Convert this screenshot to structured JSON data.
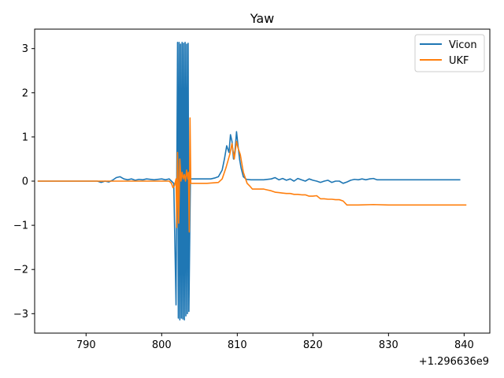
{
  "chart_data": {
    "type": "line",
    "title": "Yaw",
    "xlabel": "",
    "ylabel": "",
    "x_offset_label": "+1.296636e9",
    "xlim": [
      783.2,
      843.4
    ],
    "ylim": [
      -3.44,
      3.44
    ],
    "x_ticks": [
      790,
      800,
      810,
      820,
      830,
      840
    ],
    "y_ticks": [
      -3,
      -2,
      -1,
      0,
      1,
      2,
      3
    ],
    "grid": false,
    "legend_position": "top-right",
    "series": [
      {
        "name": "Vicon",
        "color": "#1f77b4",
        "x": [
          783.6,
          785,
          787,
          789,
          790.5,
          791.5,
          792,
          792.5,
          793,
          793.5,
          794,
          794.5,
          795,
          795.5,
          796,
          796.5,
          797,
          797.5,
          798,
          799,
          800,
          800.5,
          801,
          801.3,
          801.6,
          801.9,
          802.1,
          802.2,
          802.3,
          802.4,
          802.5,
          802.6,
          802.7,
          802.8,
          802.9,
          803.0,
          803.1,
          803.2,
          803.3,
          803.4,
          803.5,
          803.6,
          803.8,
          804.5,
          805.5,
          806.5,
          807,
          807.5,
          808,
          808.3,
          808.6,
          808.9,
          809.1,
          809.3,
          809.5,
          809.7,
          809.9,
          810.1,
          810.3,
          810.5,
          810.8,
          811.2,
          811.8,
          812.5,
          813.5,
          814.5,
          815,
          815.5,
          816,
          816.5,
          817,
          817.5,
          818,
          818.5,
          819,
          819.5,
          820,
          820.5,
          821,
          821.5,
          822,
          822.5,
          823,
          823.5,
          824,
          824.5,
          825,
          825.5,
          826,
          826.5,
          827,
          827.5,
          828,
          828.5,
          830,
          832,
          834,
          836,
          838,
          839.5
        ],
        "y": [
          0.0,
          0.0,
          0.0,
          0.0,
          0.0,
          0.0,
          -0.03,
          0.0,
          -0.02,
          0.02,
          0.08,
          0.1,
          0.05,
          0.03,
          0.05,
          0.02,
          0.04,
          0.03,
          0.05,
          0.03,
          0.05,
          0.03,
          0.05,
          0.0,
          -0.05,
          -2.8,
          3.14,
          -3.1,
          3.14,
          -3.14,
          3.1,
          -3.1,
          3.14,
          -3.12,
          3.12,
          -3.14,
          3.14,
          -3.05,
          3.1,
          -3.0,
          3.12,
          -2.95,
          0.05,
          0.05,
          0.05,
          0.05,
          0.07,
          0.1,
          0.25,
          0.5,
          0.8,
          0.65,
          1.05,
          0.9,
          0.5,
          0.7,
          1.12,
          0.8,
          0.5,
          0.3,
          0.1,
          0.04,
          0.03,
          0.03,
          0.03,
          0.05,
          0.08,
          0.03,
          0.06,
          0.02,
          0.05,
          0.0,
          0.06,
          0.03,
          0.0,
          0.05,
          0.02,
          0.0,
          -0.03,
          0.0,
          0.02,
          -0.03,
          0.0,
          0.0,
          -0.05,
          -0.02,
          0.02,
          0.04,
          0.03,
          0.05,
          0.03,
          0.05,
          0.06,
          0.03,
          0.03,
          0.03,
          0.03,
          0.03,
          0.03,
          0.03
        ]
      },
      {
        "name": "UKF",
        "color": "#ff7f0e",
        "x": [
          783.6,
          786,
          789,
          792,
          795,
          798,
          800,
          801,
          801.3,
          801.5,
          801.7,
          801.9,
          802.0,
          802.1,
          802.25,
          802.4,
          802.55,
          802.7,
          802.85,
          803.0,
          803.15,
          803.3,
          803.45,
          803.55,
          803.65,
          803.75,
          803.85,
          804.2,
          806,
          807.5,
          808,
          808.5,
          809,
          809.3,
          809.6,
          809.9,
          810.1,
          810.4,
          810.8,
          811.3,
          811.7,
          812,
          813.5,
          814,
          814.5,
          815,
          815.5,
          816,
          816.5,
          817,
          817.5,
          818,
          818.5,
          819,
          819.5,
          820,
          820.5,
          821,
          821.5,
          822,
          822.5,
          823,
          823.5,
          824,
          824.5,
          826,
          828,
          830,
          833,
          836,
          840.3
        ],
        "y": [
          0.0,
          0.0,
          0.0,
          0.0,
          0.0,
          0.0,
          0.0,
          0.0,
          -0.05,
          -0.15,
          -0.1,
          0.05,
          -1.05,
          0.65,
          -0.95,
          0.5,
          0.0,
          0.2,
          0.05,
          0.15,
          0.0,
          0.25,
          0.05,
          0.2,
          -1.15,
          1.43,
          -0.05,
          -0.05,
          -0.05,
          -0.03,
          0.05,
          0.3,
          0.6,
          0.85,
          0.5,
          0.9,
          0.75,
          0.6,
          0.2,
          -0.05,
          -0.12,
          -0.18,
          -0.18,
          -0.2,
          -0.22,
          -0.25,
          -0.26,
          -0.27,
          -0.28,
          -0.28,
          -0.3,
          -0.3,
          -0.31,
          -0.31,
          -0.34,
          -0.34,
          -0.33,
          -0.4,
          -0.4,
          -0.41,
          -0.41,
          -0.42,
          -0.42,
          -0.45,
          -0.54,
          -0.54,
          -0.53,
          -0.54,
          -0.54,
          -0.54,
          -0.54
        ]
      }
    ]
  }
}
